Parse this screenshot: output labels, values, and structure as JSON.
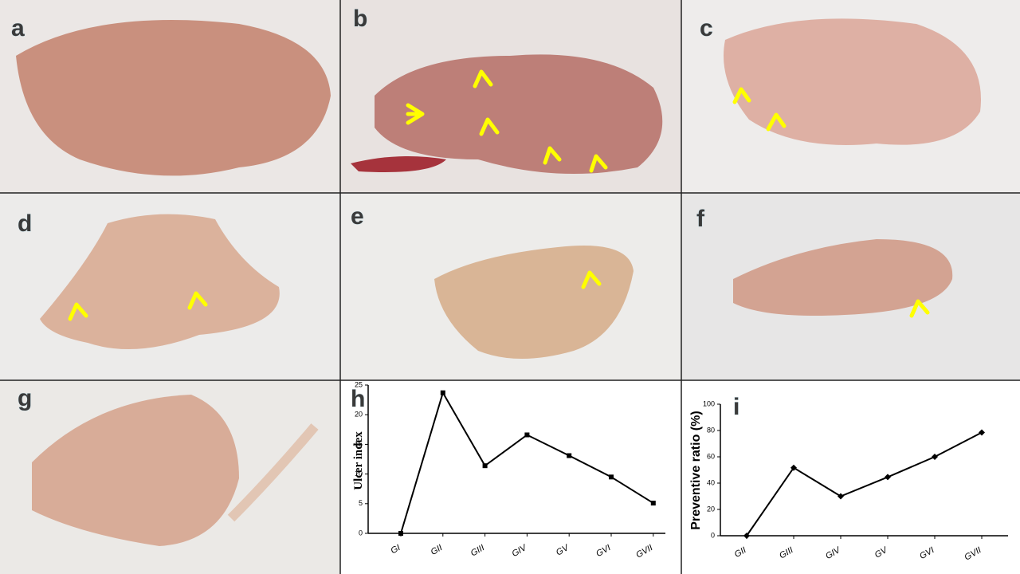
{
  "panels": [
    "a",
    "b",
    "c",
    "d",
    "e",
    "f",
    "g"
  ],
  "chart_data": [
    {
      "type": "line",
      "panel": "h",
      "y_label": "Ulcer index",
      "categories": [
        "GI",
        "GII",
        "GIII",
        "GIV",
        "GV",
        "GVI",
        "GVII"
      ],
      "values": [
        0,
        23.7,
        11.4,
        16.6,
        13.1,
        9.5,
        5.1
      ],
      "color": "#000000",
      "ylim": [
        0,
        25
      ],
      "yticks": [
        0,
        5,
        10,
        15,
        20,
        25
      ]
    },
    {
      "type": "line",
      "panel": "i",
      "y_label": "Preventive ratio (%)",
      "categories": [
        "GII",
        "GIII",
        "GIV",
        "GV",
        "GVI",
        "GVII"
      ],
      "values": [
        0,
        51.7,
        30,
        44.6,
        60,
        78.5
      ],
      "color": "#000000",
      "ylim": [
        0,
        100
      ],
      "yticks": [
        0,
        20,
        40,
        60,
        80,
        100
      ]
    }
  ]
}
